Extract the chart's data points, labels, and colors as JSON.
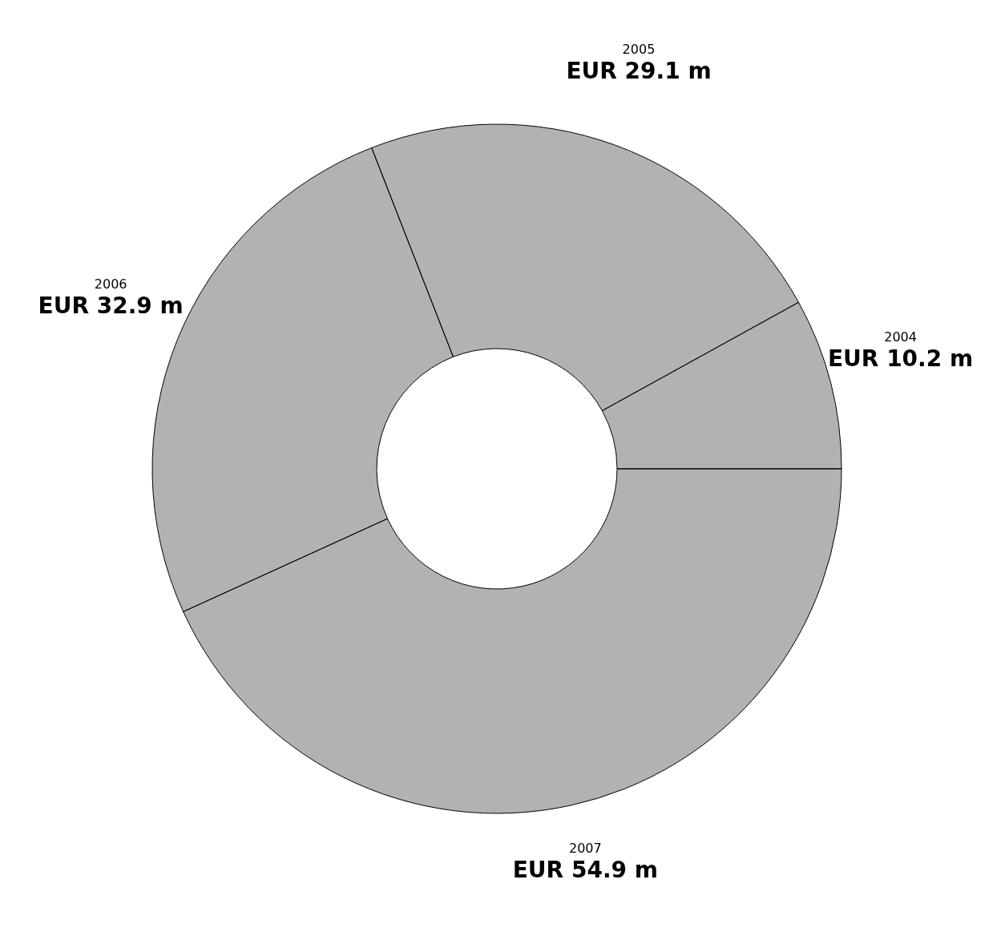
{
  "chart_data": {
    "type": "donut",
    "categories": [
      "2004",
      "2005",
      "2006",
      "2007"
    ],
    "values": [
      10.2,
      29.1,
      32.9,
      54.9
    ],
    "colors": [
      "#000000",
      "#000000",
      "#000000",
      "#000000"
    ],
    "value_labels": [
      "EUR 10.2 m",
      "EUR 29.1 m",
      "EUR 32.9 m",
      "EUR 54.9 m"
    ]
  }
}
